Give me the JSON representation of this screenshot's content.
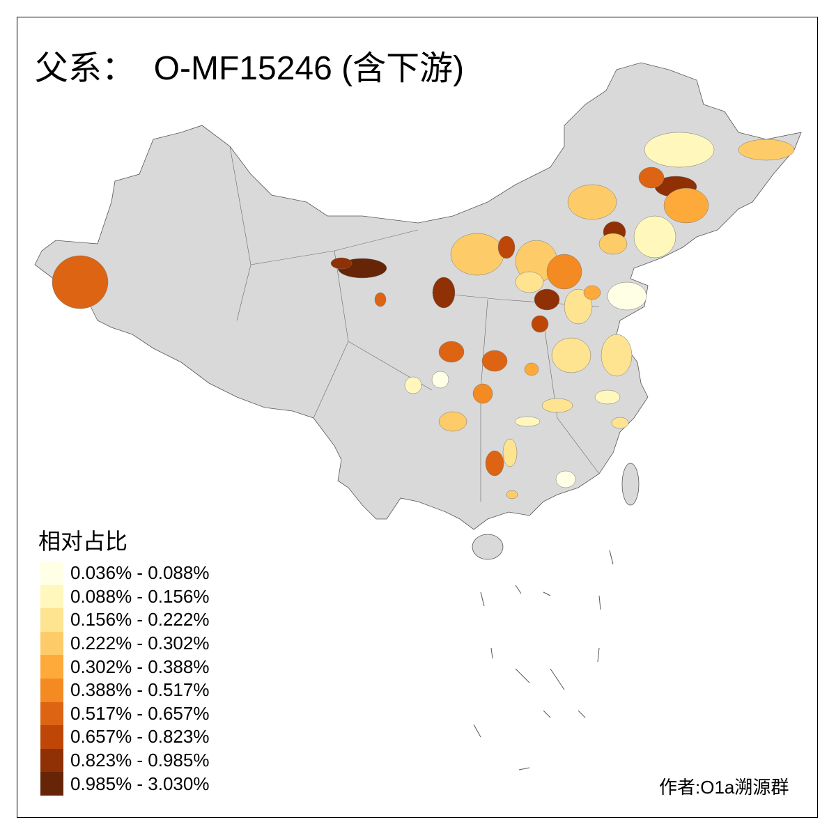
{
  "title": "父系：  O-MF15246 (含下游)",
  "legend": {
    "title": "相对占比",
    "classes": [
      {
        "label": "0.036% - 0.088%",
        "color": "#FFFFE5"
      },
      {
        "label": "0.088% - 0.156%",
        "color": "#FFF7BC"
      },
      {
        "label": "0.156% - 0.222%",
        "color": "#FEE391"
      },
      {
        "label": "0.222% - 0.302%",
        "color": "#FDCC68"
      },
      {
        "label": "0.302% - 0.388%",
        "color": "#FDAA3B"
      },
      {
        "label": "0.388% - 0.517%",
        "color": "#F38A22"
      },
      {
        "label": "0.517% - 0.657%",
        "color": "#DD6413"
      },
      {
        "label": "0.657% - 0.823%",
        "color": "#BE4606"
      },
      {
        "label": "0.823% - 0.985%",
        "color": "#8F3005"
      },
      {
        "label": "0.985% - 3.030%",
        "color": "#662506"
      }
    ]
  },
  "no_data_color": "#D9D9D9",
  "author": "作者:O1a溯源群"
}
